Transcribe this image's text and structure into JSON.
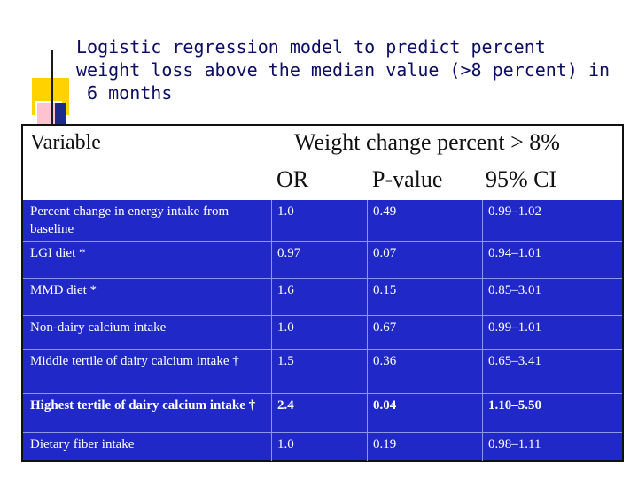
{
  "title": "Logistic regression model to predict percent\nweight loss above the median value (>8 percent) in\n 6 months",
  "table": {
    "header": {
      "variable": "Variable",
      "group": "Weight change percent > 8%",
      "or": "OR",
      "pvalue": "P-value",
      "ci": "95% CI"
    },
    "rows": [
      {
        "variable": "Percent change in energy intake from baseline",
        "or": "1.0",
        "pvalue": "0.49",
        "ci": "0.99–1.02",
        "bold": false
      },
      {
        "variable": "LGI diet *",
        "or": "0.97",
        "pvalue": "0.07",
        "ci": "0.94–1.01",
        "bold": false
      },
      {
        "variable": "MMD diet *",
        "or": "1.6",
        "pvalue": "0.15",
        "ci": "0.85–3.01",
        "bold": false
      },
      {
        "variable": "Non-dairy calcium intake",
        "or": "1.0",
        "pvalue": "0.67",
        "ci": "0.99–1.01",
        "bold": false
      },
      {
        "variable": "Middle tertile of dairy calcium intake †",
        "or": "1.5",
        "pvalue": "0.36",
        "ci": "0.65–3.41",
        "bold": false
      },
      {
        "variable": "Highest tertile of dairy calcium intake †",
        "or": "2.4",
        "pvalue": "0.04",
        "ci": "1.10–5.50",
        "bold": true
      },
      {
        "variable": "Dietary fiber intake",
        "or": "1.0",
        "pvalue": "0.19",
        "ci": "0.98–1.11",
        "bold": false
      }
    ]
  }
}
